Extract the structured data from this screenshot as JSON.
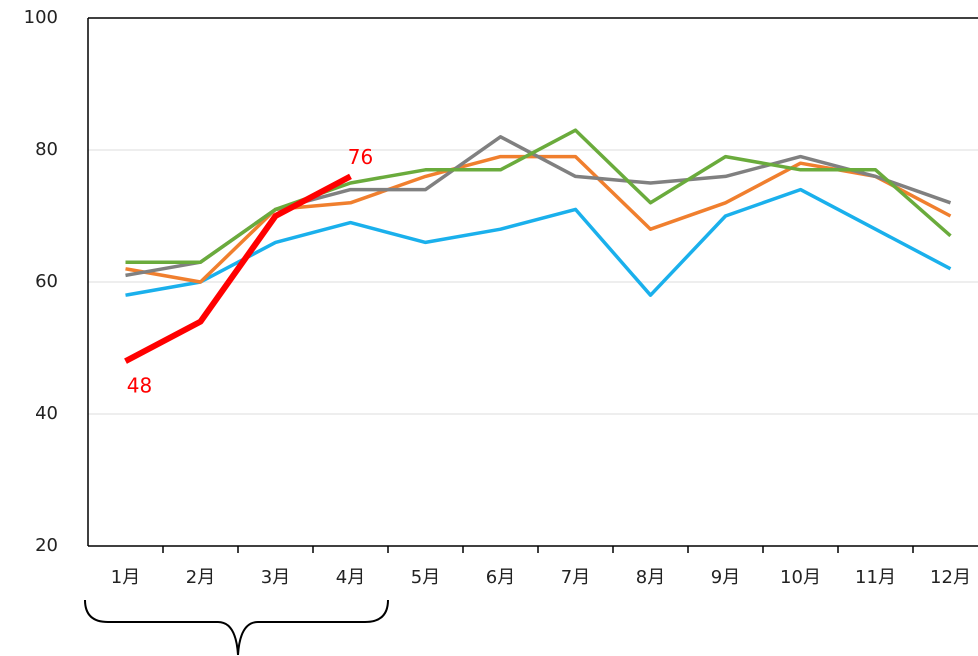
{
  "chart_data": {
    "type": "line",
    "categories": [
      "1月",
      "2月",
      "3月",
      "4月",
      "5月",
      "6月",
      "7月",
      "8月",
      "9月",
      "10月",
      "11月",
      "12月"
    ],
    "series": [
      {
        "color": "#1ab0ec",
        "values": [
          58,
          60,
          66,
          69,
          66,
          68,
          71,
          58,
          70,
          74,
          68,
          62
        ]
      },
      {
        "color": "#f07f2e",
        "values": [
          62,
          60,
          71,
          72,
          76,
          79,
          79,
          68,
          72,
          78,
          76,
          70
        ]
      },
      {
        "color": "#808080",
        "values": [
          61,
          63,
          71,
          74,
          74,
          82,
          76,
          75,
          76,
          79,
          76,
          72
        ]
      },
      {
        "color": "#6aab3c",
        "values": [
          63,
          63,
          71,
          75,
          77,
          77,
          83,
          72,
          79,
          77,
          77,
          67
        ]
      },
      {
        "color": "#ff0000",
        "values": [
          48,
          54,
          70,
          76,
          null,
          null,
          null,
          null,
          null,
          null,
          null,
          null
        ],
        "end_labels": true
      }
    ],
    "ylim": [
      20,
      100
    ],
    "yticks": [
      20,
      40,
      60,
      80,
      100
    ],
    "grid": true
  }
}
